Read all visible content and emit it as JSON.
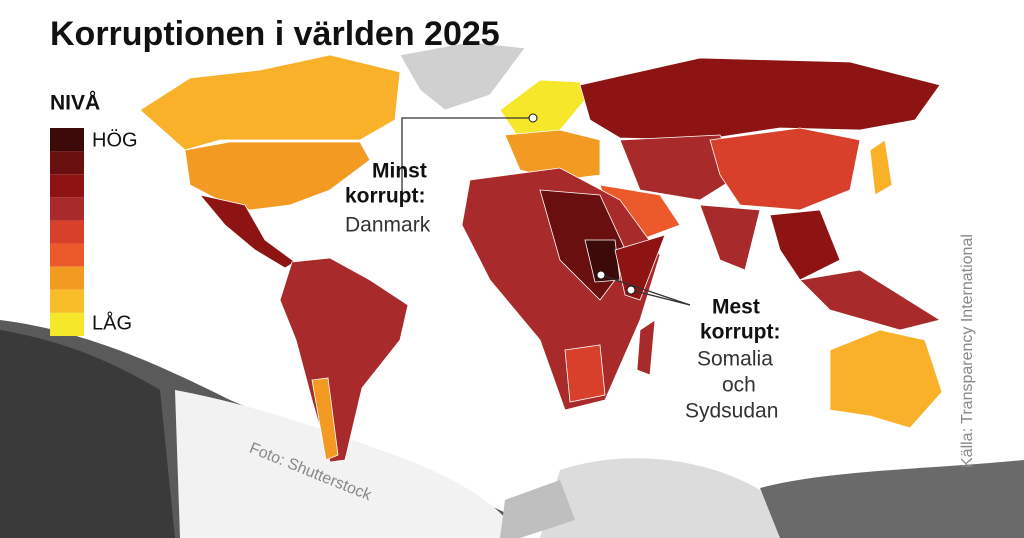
{
  "title": "Korruptionen i världen 2025",
  "legend": {
    "title": "NIVÅ",
    "high": "HÖG",
    "low": "LÅG",
    "colors": [
      "#3d0a0a",
      "#6a0f0f",
      "#8e1414",
      "#a82a2a",
      "#d8402c",
      "#ec5a2c",
      "#f39a22",
      "#f9bd2a",
      "#f7e72a"
    ]
  },
  "annotations": [
    {
      "label_lines": [
        "Minst",
        "korrupt:"
      ],
      "country_lines": [
        "Danmark"
      ]
    },
    {
      "label_lines": [
        "Mest",
        "korrupt:"
      ],
      "country_lines": [
        "Somalia",
        "och",
        "Sydsudan"
      ]
    }
  ],
  "photo_credit": "Foto: Shutterstock",
  "source": "Källa: Transparency International"
}
